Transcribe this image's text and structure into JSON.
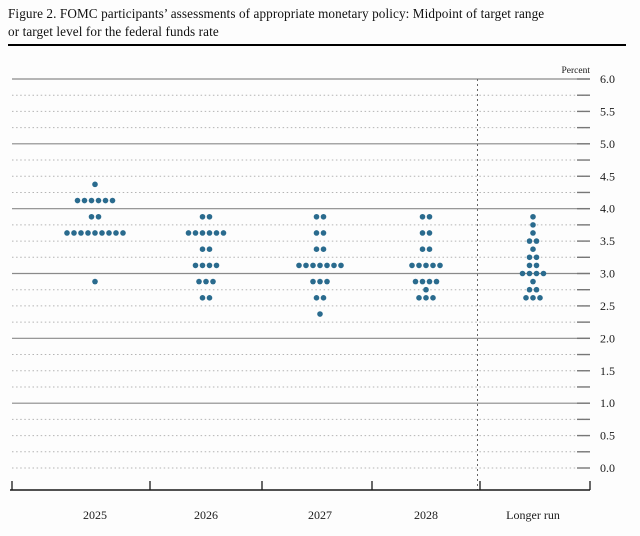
{
  "header": {
    "line1": "Figure 2. FOMC participants’ assessments of appropriate monetary policy: Midpoint of target range",
    "line2": "or target level for the federal funds rate"
  },
  "chart_data": {
    "type": "scatter",
    "variant": "fomc-dot-plot",
    "title": "FOMC participants’ assessments of appropriate monetary policy",
    "unit_label": "Percent",
    "ylim": [
      0.0,
      6.0
    ],
    "ytick_label_step": 0.5,
    "gridline_step": 0.25,
    "solid_gridlines": [
      1.0,
      2.0,
      3.0,
      4.0,
      5.0,
      6.0
    ],
    "ytick_labels": [
      "6.0",
      "5.5",
      "5.0",
      "4.5",
      "4.0",
      "3.5",
      "3.0",
      "2.5",
      "2.0",
      "1.5",
      "1.0",
      "0.5",
      "0.0"
    ],
    "grid": true,
    "legend_position": "none",
    "categories": [
      "2025",
      "2026",
      "2027",
      "2028",
      "Longer run"
    ],
    "separator_before_category": "Longer run",
    "series": [
      {
        "category": "2025",
        "dots": [
          {
            "rate": 4.375,
            "count": 1
          },
          {
            "rate": 4.125,
            "count": 6
          },
          {
            "rate": 3.875,
            "count": 2
          },
          {
            "rate": 3.625,
            "count": 9
          },
          {
            "rate": 2.875,
            "count": 1
          }
        ]
      },
      {
        "category": "2026",
        "dots": [
          {
            "rate": 3.875,
            "count": 2
          },
          {
            "rate": 3.625,
            "count": 6
          },
          {
            "rate": 3.375,
            "count": 2
          },
          {
            "rate": 3.125,
            "count": 4
          },
          {
            "rate": 2.875,
            "count": 3
          },
          {
            "rate": 2.625,
            "count": 2
          }
        ]
      },
      {
        "category": "2027",
        "dots": [
          {
            "rate": 3.875,
            "count": 2
          },
          {
            "rate": 3.625,
            "count": 2
          },
          {
            "rate": 3.375,
            "count": 2
          },
          {
            "rate": 3.125,
            "count": 7
          },
          {
            "rate": 2.875,
            "count": 3
          },
          {
            "rate": 2.625,
            "count": 2
          },
          {
            "rate": 2.375,
            "count": 1
          }
        ]
      },
      {
        "category": "2028",
        "dots": [
          {
            "rate": 3.875,
            "count": 2
          },
          {
            "rate": 3.625,
            "count": 2
          },
          {
            "rate": 3.375,
            "count": 2
          },
          {
            "rate": 3.125,
            "count": 5
          },
          {
            "rate": 2.875,
            "count": 4
          },
          {
            "rate": 2.75,
            "count": 1
          },
          {
            "rate": 2.625,
            "count": 3
          }
        ]
      },
      {
        "category": "Longer run",
        "dots": [
          {
            "rate": 3.875,
            "count": 1
          },
          {
            "rate": 3.75,
            "count": 1
          },
          {
            "rate": 3.625,
            "count": 1
          },
          {
            "rate": 3.5,
            "count": 2
          },
          {
            "rate": 3.375,
            "count": 1
          },
          {
            "rate": 3.25,
            "count": 2
          },
          {
            "rate": 3.125,
            "count": 2
          },
          {
            "rate": 3.0,
            "count": 4
          },
          {
            "rate": 2.875,
            "count": 1
          },
          {
            "rate": 2.75,
            "count": 2
          },
          {
            "rate": 2.625,
            "count": 3
          }
        ]
      }
    ],
    "colors": {
      "dot": "#2a6b8e",
      "grid_dotted": "#b4b4b4",
      "grid_solid": "#8a8a8a",
      "axis": "#1a1a1a",
      "separator": "#666666",
      "text": "#1a1a1a"
    }
  }
}
